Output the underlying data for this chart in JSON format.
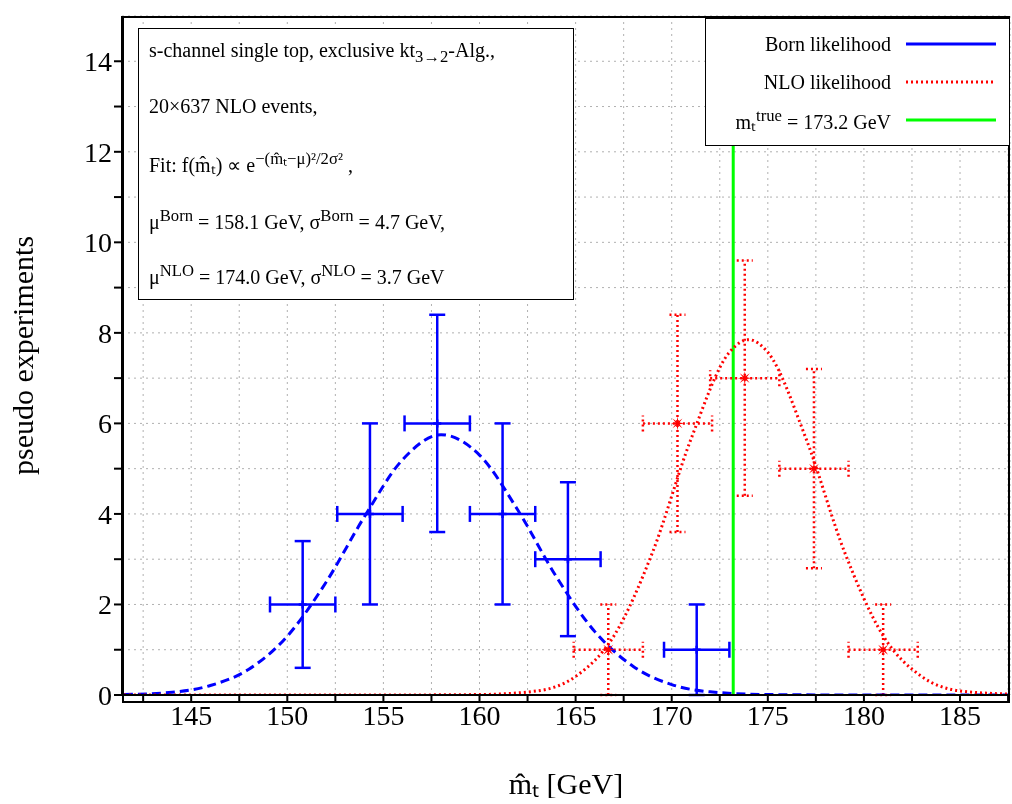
{
  "chart_data": {
    "type": "scatter",
    "xlabel": "m̂ₜ [GeV]",
    "ylabel": "pseudo experiments",
    "annotations": [
      "s-channel single top, exclusive kt$_{3→2}$-Alg.,",
      "20×637 NLO events,",
      "Fit:    f(m̂ₜ) ∝ e$^{−(m̂ₜ−μ)²/2σ²}$ ,",
      "μ$^{Born}$ = 158.1 GeV,  σ$^{Born}$ = 4.7 GeV,",
      "μ$^{NLO}$ = 174.0 GeV,  σ$^{NLO}$ = 3.7 GeV"
    ],
    "xlim": [
      141.4,
      187.6
    ],
    "xticks": [
      {
        "value": 142.5,
        "label": null
      },
      145,
      {
        "value": 147.5,
        "label": null
      },
      150,
      {
        "value": 152.5,
        "label": null
      },
      155,
      {
        "value": 157.5,
        "label": null
      },
      160,
      {
        "value": 162.5,
        "label": null
      },
      165,
      {
        "value": 167.5,
        "label": null
      },
      170,
      {
        "value": 172.5,
        "label": null
      },
      175,
      {
        "value": 177.5,
        "label": null
      },
      180,
      {
        "value": 182.5,
        "label": null
      },
      185,
      {
        "value": 187.5,
        "label": null
      }
    ],
    "ylim": [
      0,
      15
    ],
    "yticks": [
      0,
      {
        "value": 1,
        "label": null
      },
      2,
      {
        "value": 3,
        "label": null
      },
      4,
      {
        "value": 5,
        "label": null
      },
      6,
      {
        "value": 7,
        "label": null
      },
      8,
      {
        "value": 9,
        "label": null
      },
      10,
      {
        "value": 11,
        "label": null
      },
      12,
      {
        "value": 13,
        "label": null
      },
      14
    ],
    "grid": true,
    "legend": "top right",
    "ref_lines": [
      {
        "axis": "x",
        "value": 173.2,
        "label": "mₜ$^{true}$ = 173.2 GeV",
        "color": "#00ff00"
      }
    ],
    "series": [
      {
        "name": "Born likelihood",
        "color": "#0000ff",
        "marker": "cross",
        "x": [
          150.8,
          154.3,
          157.8,
          161.2,
          164.6,
          171.3
        ],
        "values": [
          2,
          4,
          6,
          4,
          3,
          1
        ],
        "errors": [
          1.4,
          2,
          2.4,
          2,
          1.7,
          1
        ],
        "xerrors": [
          1.7,
          1.7,
          1.7,
          1.7,
          1.7,
          1.7
        ]
      },
      {
        "name": "NLO likelihood",
        "color": "#ff0000",
        "marker": "star",
        "line_style": "dotted",
        "x": [
          166.7,
          170.3,
          173.8,
          177.4,
          181.0
        ],
        "values": [
          1,
          6,
          7,
          5,
          1
        ],
        "errors": [
          1,
          2.4,
          2.6,
          2.2,
          1
        ],
        "xerrors": [
          1.8,
          1.8,
          1.8,
          1.8,
          1.8
        ]
      },
      {
        "type": "line",
        "color": "#0000ff",
        "line_style": "dashed",
        "x": [
          141.5,
          144,
          146,
          148,
          150,
          152,
          154,
          156,
          158,
          160,
          162,
          164,
          166,
          168,
          170,
          172,
          175,
          180,
          187.6
        ],
        "values": [
          0.01,
          0.06,
          0.21,
          0.57,
          1.3,
          2.48,
          3.93,
          5.2,
          5.75,
          5.3,
          4.08,
          2.61,
          1.4,
          0.63,
          0.23,
          0.07,
          0.01,
          0,
          0
        ]
      },
      {
        "type": "line",
        "color": "#ff0000",
        "line_style": "dotted",
        "x": [
          141.5,
          155,
          160,
          163,
          165,
          167,
          169,
          171,
          173,
          174,
          175,
          177,
          179,
          181,
          183,
          185,
          187.6
        ],
        "values": [
          0,
          0,
          0.01,
          0.09,
          0.41,
          1.31,
          3.15,
          5.65,
          7.57,
          7.85,
          7.57,
          5.65,
          3.15,
          1.31,
          0.41,
          0.09,
          0.02
        ]
      }
    ]
  }
}
